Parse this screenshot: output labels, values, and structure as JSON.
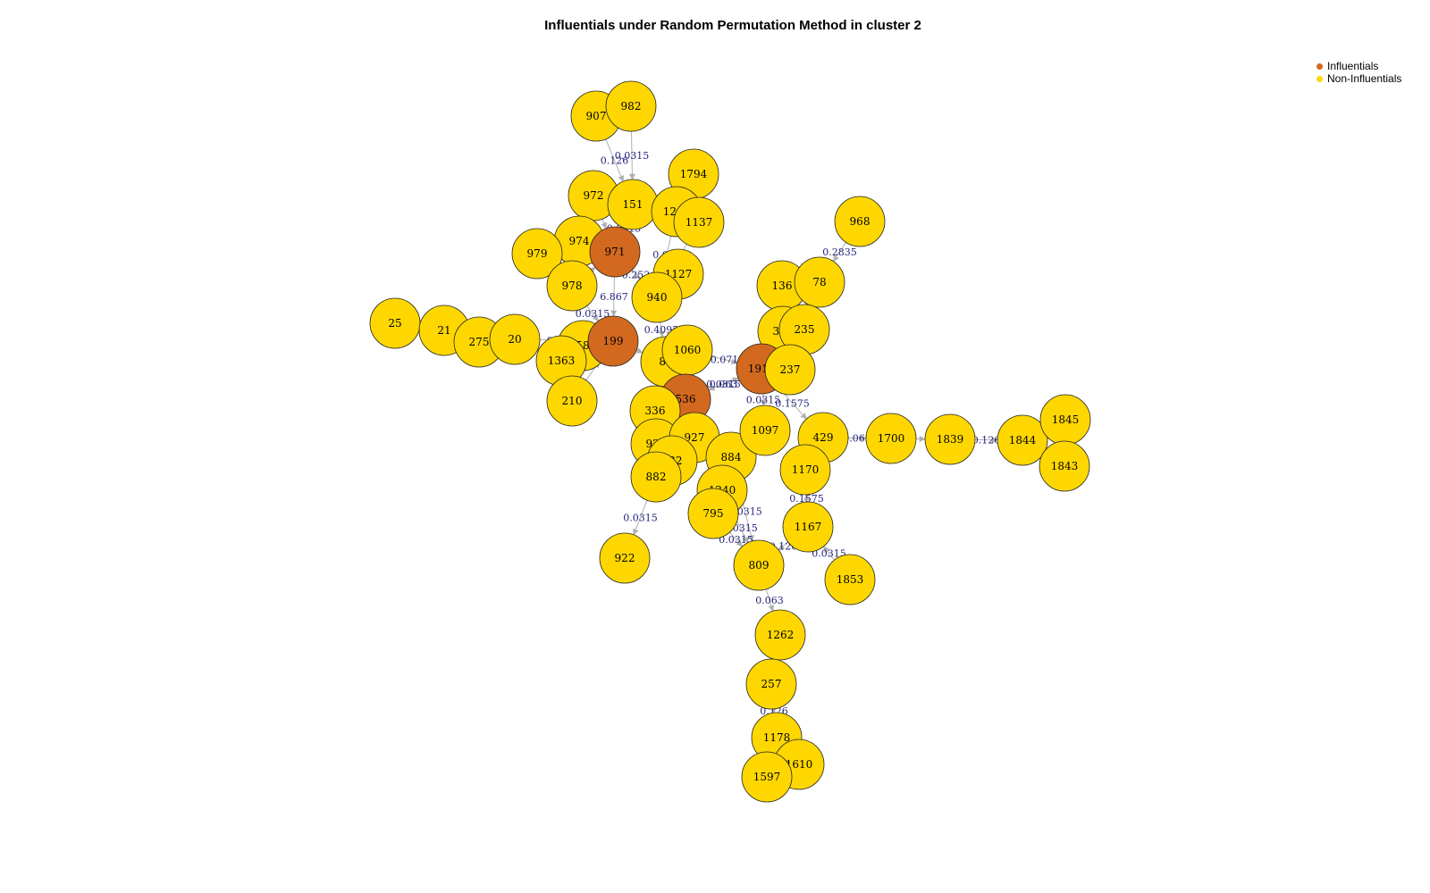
{
  "title": "Influentials under Random Permutation Method in cluster 2",
  "legend": {
    "items": [
      {
        "label": "Influentials",
        "color": "#d2691e"
      },
      {
        "label": "Non-Influentials",
        "color": "#ffd700"
      }
    ]
  },
  "colors": {
    "influential": "#d2691e",
    "non_influential": "#ffd700",
    "edge": "#b0b0b0",
    "edge_label": "#1f1f7a"
  },
  "nodes": [
    {
      "id": "907",
      "influential": false
    },
    {
      "id": "982",
      "influential": false
    },
    {
      "id": "972",
      "influential": false
    },
    {
      "id": "151",
      "influential": false
    },
    {
      "id": "1794",
      "influential": false
    },
    {
      "id": "1203",
      "influential": false
    },
    {
      "id": "1137",
      "influential": false
    },
    {
      "id": "974",
      "influential": false
    },
    {
      "id": "971",
      "influential": true
    },
    {
      "id": "979",
      "influential": false
    },
    {
      "id": "978",
      "influential": false
    },
    {
      "id": "1127",
      "influential": false
    },
    {
      "id": "940",
      "influential": false
    },
    {
      "id": "968",
      "influential": false
    },
    {
      "id": "136",
      "influential": false
    },
    {
      "id": "78",
      "influential": false
    },
    {
      "id": "25",
      "influential": false
    },
    {
      "id": "21",
      "influential": false
    },
    {
      "id": "275",
      "influential": false
    },
    {
      "id": "20",
      "influential": false
    },
    {
      "id": "1582",
      "influential": false
    },
    {
      "id": "199",
      "influential": true
    },
    {
      "id": "1363",
      "influential": false
    },
    {
      "id": "83",
      "influential": false
    },
    {
      "id": "1060",
      "influential": false
    },
    {
      "id": "347",
      "influential": false
    },
    {
      "id": "235",
      "influential": false
    },
    {
      "id": "1911",
      "influential": true
    },
    {
      "id": "237",
      "influential": false
    },
    {
      "id": "210",
      "influential": false
    },
    {
      "id": "536",
      "influential": true
    },
    {
      "id": "336",
      "influential": false
    },
    {
      "id": "921",
      "influential": false
    },
    {
      "id": "927",
      "influential": false
    },
    {
      "id": "532",
      "influential": false
    },
    {
      "id": "884",
      "influential": false
    },
    {
      "id": "1097",
      "influential": false
    },
    {
      "id": "429",
      "influential": false
    },
    {
      "id": "1700",
      "influential": false
    },
    {
      "id": "1839",
      "influential": false
    },
    {
      "id": "1844",
      "influential": false
    },
    {
      "id": "1845",
      "influential": false
    },
    {
      "id": "1843",
      "influential": false
    },
    {
      "id": "882",
      "influential": false
    },
    {
      "id": "1170",
      "influential": false
    },
    {
      "id": "1240",
      "influential": false
    },
    {
      "id": "795",
      "influential": false
    },
    {
      "id": "1167",
      "influential": false
    },
    {
      "id": "922",
      "influential": false
    },
    {
      "id": "809",
      "influential": false
    },
    {
      "id": "1853",
      "influential": false
    },
    {
      "id": "1262",
      "influential": false
    },
    {
      "id": "257",
      "influential": false
    },
    {
      "id": "1178",
      "influential": false
    },
    {
      "id": "1610",
      "influential": false
    },
    {
      "id": "1597",
      "influential": false
    }
  ],
  "edges": [
    {
      "source": "907",
      "target": "151",
      "label": "0.126"
    },
    {
      "source": "982",
      "target": "151",
      "label": "0.0315"
    },
    {
      "source": "972",
      "target": "971",
      "label": ""
    },
    {
      "source": "151",
      "target": "971",
      "label": "0.0315"
    },
    {
      "source": "1203",
      "target": "940",
      "label": "0.063"
    },
    {
      "source": "1137",
      "target": "940",
      "label": "0.0315"
    },
    {
      "source": "1794",
      "target": "1203",
      "label": ""
    },
    {
      "source": "974",
      "target": "971",
      "label": ""
    },
    {
      "source": "979",
      "target": "971",
      "label": ""
    },
    {
      "source": "978",
      "target": "971",
      "label": ""
    },
    {
      "source": "971",
      "target": "940",
      "label": "0.252"
    },
    {
      "source": "971",
      "target": "199",
      "label": "6.867"
    },
    {
      "source": "978",
      "target": "199",
      "label": "0.0315"
    },
    {
      "source": "1127",
      "target": "940",
      "label": "0.063"
    },
    {
      "source": "940",
      "target": "83",
      "label": "0.4095"
    },
    {
      "source": "968",
      "target": "78",
      "label": "0.2835"
    },
    {
      "source": "25",
      "target": "21",
      "label": ""
    },
    {
      "source": "21",
      "target": "275",
      "label": ""
    },
    {
      "source": "275",
      "target": "20",
      "label": ""
    },
    {
      "source": "20",
      "target": "199",
      "label": "0.1575"
    },
    {
      "source": "1582",
      "target": "199",
      "label": "0.0315"
    },
    {
      "source": "1363",
      "target": "199",
      "label": "0.4095"
    },
    {
      "source": "199",
      "target": "83",
      "label": ""
    },
    {
      "source": "83",
      "target": "536",
      "label": ""
    },
    {
      "source": "1060",
      "target": "1911",
      "label": "0.071"
    },
    {
      "source": "536",
      "target": "1911",
      "label": "0.0315"
    },
    {
      "source": "136",
      "target": "1911",
      "label": ""
    },
    {
      "source": "78",
      "target": "1911",
      "label": ""
    },
    {
      "source": "347",
      "target": "1911",
      "label": ""
    },
    {
      "source": "235",
      "target": "1911",
      "label": ""
    },
    {
      "source": "237",
      "target": "1911",
      "label": ""
    },
    {
      "source": "1911",
      "target": "1097",
      "label": "0.0315"
    },
    {
      "source": "1911",
      "target": "429",
      "label": "0.1575"
    },
    {
      "source": "1911",
      "target": "536",
      "label": "0.063"
    },
    {
      "source": "210",
      "target": "199",
      "label": ""
    },
    {
      "source": "336",
      "target": "536",
      "label": ""
    },
    {
      "source": "921",
      "target": "536",
      "label": ""
    },
    {
      "source": "927",
      "target": "536",
      "label": ""
    },
    {
      "source": "532",
      "target": "536",
      "label": ""
    },
    {
      "source": "884",
      "target": "536",
      "label": ""
    },
    {
      "source": "429",
      "target": "1700",
      "label": "0.063"
    },
    {
      "source": "1700",
      "target": "1839",
      "label": ""
    },
    {
      "source": "1839",
      "target": "1844",
      "label": "0.126"
    },
    {
      "source": "1844",
      "target": "1845",
      "label": ""
    },
    {
      "source": "1844",
      "target": "1843",
      "label": ""
    },
    {
      "source": "882",
      "target": "536",
      "label": ""
    },
    {
      "source": "882",
      "target": "922",
      "label": "0.0315"
    },
    {
      "source": "1170",
      "target": "429",
      "label": ""
    },
    {
      "source": "1167",
      "target": "1170",
      "label": "0.1575"
    },
    {
      "source": "1853",
      "target": "1167",
      "label": "0.0315"
    },
    {
      "source": "1240",
      "target": "809",
      "label": "0.0315"
    },
    {
      "source": "795",
      "target": "809",
      "label": "0.0315"
    },
    {
      "source": "884",
      "target": "809",
      "label": "0.0315"
    },
    {
      "source": "1167",
      "target": "809",
      "label": "0.126"
    },
    {
      "source": "809",
      "target": "1262",
      "label": "0.063"
    },
    {
      "source": "1262",
      "target": "257",
      "label": ""
    },
    {
      "source": "257",
      "target": "1178",
      "label": "0.126"
    },
    {
      "source": "1178",
      "target": "1610",
      "label": ""
    },
    {
      "source": "1178",
      "target": "1597",
      "label": ""
    }
  ]
}
